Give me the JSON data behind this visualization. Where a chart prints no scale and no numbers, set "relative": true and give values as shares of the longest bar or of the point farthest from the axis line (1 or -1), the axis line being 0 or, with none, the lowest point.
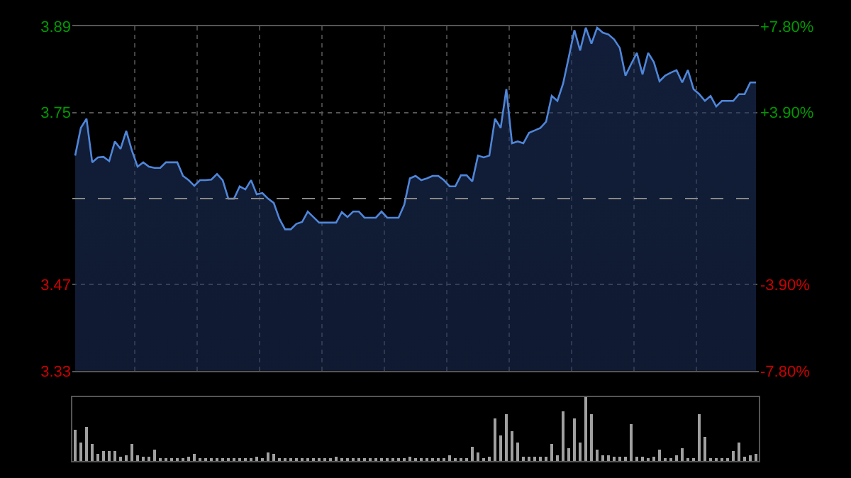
{
  "chart_data": [
    {
      "type": "area",
      "categories": [
        null,
        null,
        null,
        null,
        null,
        null,
        null,
        null,
        null,
        null,
        null,
        null,
        null,
        null,
        null,
        null,
        null,
        null,
        null,
        null,
        null,
        null,
        null,
        null,
        null,
        null,
        null,
        null,
        null,
        null,
        null,
        null,
        null,
        null,
        null,
        null,
        null,
        null,
        null,
        null,
        null,
        null,
        null,
        null,
        null,
        null,
        null,
        null,
        null,
        null,
        null,
        null,
        null,
        null,
        null,
        null,
        null,
        null,
        null,
        null,
        null,
        null,
        null,
        null,
        null,
        null,
        null,
        null,
        null,
        null,
        null,
        null,
        null,
        null,
        null,
        null,
        null,
        null,
        null,
        null,
        null,
        null,
        null,
        null,
        null,
        null,
        null,
        null,
        null,
        null,
        null,
        null,
        null,
        null,
        null,
        null,
        null,
        null,
        null,
        null,
        null,
        null,
        null,
        null,
        null,
        null,
        null,
        null,
        null,
        null,
        null,
        null,
        null,
        null,
        null,
        null,
        null,
        null,
        null,
        null,
        null
      ],
      "series": [
        {
          "color": "#4f86d9",
          "values": [
            3.68,
            3.725,
            3.74,
            3.669,
            3.677,
            3.678,
            3.671,
            3.703,
            3.691,
            3.72,
            3.688,
            3.662,
            3.669,
            3.662,
            3.66,
            3.66,
            3.669,
            3.669,
            3.669,
            3.647,
            3.64,
            3.631,
            3.64,
            3.64,
            3.641,
            3.65,
            3.64,
            3.61,
            3.61,
            3.63,
            3.625,
            3.64,
            3.617,
            3.619,
            3.61,
            3.603,
            3.577,
            3.56,
            3.56,
            3.569,
            3.572,
            3.589,
            3.58,
            3.571,
            3.571,
            3.571,
            3.571,
            3.588,
            3.58,
            3.589,
            3.589,
            3.579,
            3.579,
            3.579,
            3.589,
            3.579,
            3.579,
            3.579,
            3.6,
            3.643,
            3.647,
            3.64,
            3.643,
            3.647,
            3.647,
            3.64,
            3.63,
            3.63,
            3.648,
            3.648,
            3.638,
            3.68,
            3.677,
            3.68,
            3.74,
            3.725,
            3.788,
            3.7,
            3.703,
            3.7,
            3.717,
            3.721,
            3.725,
            3.735,
            3.777,
            3.769,
            3.797,
            3.84,
            3.884,
            3.851,
            3.888,
            3.862,
            3.888,
            3.88,
            3.877,
            3.869,
            3.855,
            3.81,
            3.829,
            3.847,
            3.812,
            3.847,
            3.832,
            3.801,
            3.81,
            3.815,
            3.819,
            3.799,
            3.819,
            3.788,
            3.78,
            3.769,
            3.777,
            3.76,
            3.769,
            3.769,
            3.769,
            3.78,
            3.78,
            3.799,
            3.799
          ]
        }
      ],
      "ylim": [
        3.33,
        3.89
      ],
      "yticks": [
        3.33,
        3.47,
        3.75,
        3.89
      ],
      "y2lim": [
        -7.8,
        7.8
      ],
      "y2ticks": [
        {
          "value": -7.8,
          "label": "-7.80%"
        },
        {
          "value": -3.9,
          "label": "-3.90%"
        },
        {
          "value": 3.9,
          "label": "+3.90%"
        },
        {
          "value": 7.8,
          "label": "+7.80%"
        }
      ],
      "ref_lines": [
        {
          "axis": "y",
          "value": 3.61,
          "color": "#888888",
          "line_style": "dashed"
        }
      ],
      "grid": true,
      "tick_labels": "y"
    },
    {
      "type": "bar",
      "relative": true,
      "color": "#a0a0a0",
      "categories": [
        null,
        null,
        null,
        null,
        null,
        null,
        null,
        null,
        null,
        null,
        null,
        null,
        null,
        null,
        null,
        null,
        null,
        null,
        null,
        null,
        null,
        null,
        null,
        null,
        null,
        null,
        null,
        null,
        null,
        null,
        null,
        null,
        null,
        null,
        null,
        null,
        null,
        null,
        null,
        null,
        null,
        null,
        null,
        null,
        null,
        null,
        null,
        null,
        null,
        null,
        null,
        null,
        null,
        null,
        null,
        null,
        null,
        null,
        null,
        null,
        null,
        null,
        null,
        null,
        null,
        null,
        null,
        null,
        null,
        null,
        null,
        null,
        null,
        null,
        null,
        null,
        null,
        null,
        null,
        null,
        null,
        null,
        null,
        null,
        null,
        null,
        null,
        null,
        null,
        null,
        null,
        null,
        null,
        null,
        null,
        null,
        null,
        null,
        null,
        null,
        null,
        null,
        null,
        null,
        null,
        null,
        null,
        null,
        null,
        null,
        null,
        null,
        null,
        null,
        null,
        null,
        null,
        null,
        null,
        null,
        null
      ],
      "values": [
        0.5,
        0.3,
        0.53,
        0.28,
        0.12,
        0.16,
        0.15,
        0.17,
        0.08,
        0.1,
        0.26,
        0.1,
        0.08,
        0.08,
        0.18,
        0.04,
        0.04,
        0.04,
        0.04,
        0.04,
        0.08,
        0.11,
        0.04,
        0.04,
        0.04,
        0.04,
        0.04,
        0.04,
        0.04,
        0.04,
        0.04,
        0.05,
        0.06,
        0.04,
        0.14,
        0.12,
        0.04,
        0.04,
        0.04,
        0.04,
        0.04,
        0.04,
        0.04,
        0.04,
        0.04,
        0.04,
        0.06,
        0.04,
        0.04,
        0.04,
        0.04,
        0.04,
        0.04,
        0.04,
        0.04,
        0.04,
        0.04,
        0.04,
        0.05,
        0.07,
        0.05,
        0.05,
        0.05,
        0.05,
        0.05,
        0.05,
        0.09,
        0.04,
        0.04,
        0.04,
        0.22,
        0.13,
        0.05,
        0.07,
        0.66,
        0.4,
        0.74,
        0.47,
        0.3,
        0.06,
        0.06,
        0.06,
        0.06,
        0.06,
        0.26,
        0.1,
        0.77,
        0.2,
        0.67,
        0.3,
        1.0,
        0.74,
        0.18,
        0.1,
        0.1,
        0.06,
        0.08,
        0.06,
        0.57,
        0.06,
        0.06,
        0.05,
        0.06,
        0.18,
        0.04,
        0.05,
        0.1,
        0.2,
        0.04,
        0.05,
        0.74,
        0.37,
        0.05,
        0.04,
        0.04,
        0.04,
        0.16,
        0.3,
        0.08,
        0.1,
        0.12
      ]
    }
  ]
}
